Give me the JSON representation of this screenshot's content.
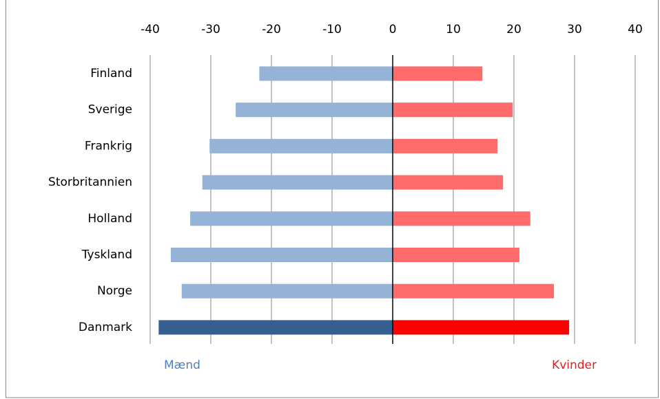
{
  "chart_data": {
    "type": "bar",
    "orientation": "horizontal",
    "categories": [
      "Finland",
      "Sverige",
      "Frankrig",
      "Storbritannien",
      "Holland",
      "Tyskland",
      "Norge",
      "Danmark"
    ],
    "series": [
      {
        "name": "Mænd",
        "color": "#4f81bd",
        "colors": [
          "#95b3d7",
          "#95b3d7",
          "#95b3d7",
          "#95b3d7",
          "#95b3d7",
          "#95b3d7",
          "#95b3d7",
          "#365f91"
        ],
        "values": [
          -22.0,
          -25.9,
          -30.2,
          -31.4,
          -33.4,
          -36.6,
          -34.8,
          -38.6
        ]
      },
      {
        "name": "Kvinder",
        "color": "#e02020",
        "colors": [
          "#ff6b6b",
          "#ff6b6b",
          "#ff6b6b",
          "#ff6b6b",
          "#ff6b6b",
          "#ff6b6b",
          "#ff6b6b",
          "#ff0000"
        ],
        "values": [
          14.8,
          19.8,
          17.3,
          18.2,
          22.7,
          20.9,
          26.6,
          29.1
        ]
      }
    ],
    "xlim": [
      -40,
      40
    ],
    "xticks": [
      -40,
      -30,
      -20,
      -10,
      0,
      10,
      20,
      30,
      40
    ],
    "grid": true
  }
}
